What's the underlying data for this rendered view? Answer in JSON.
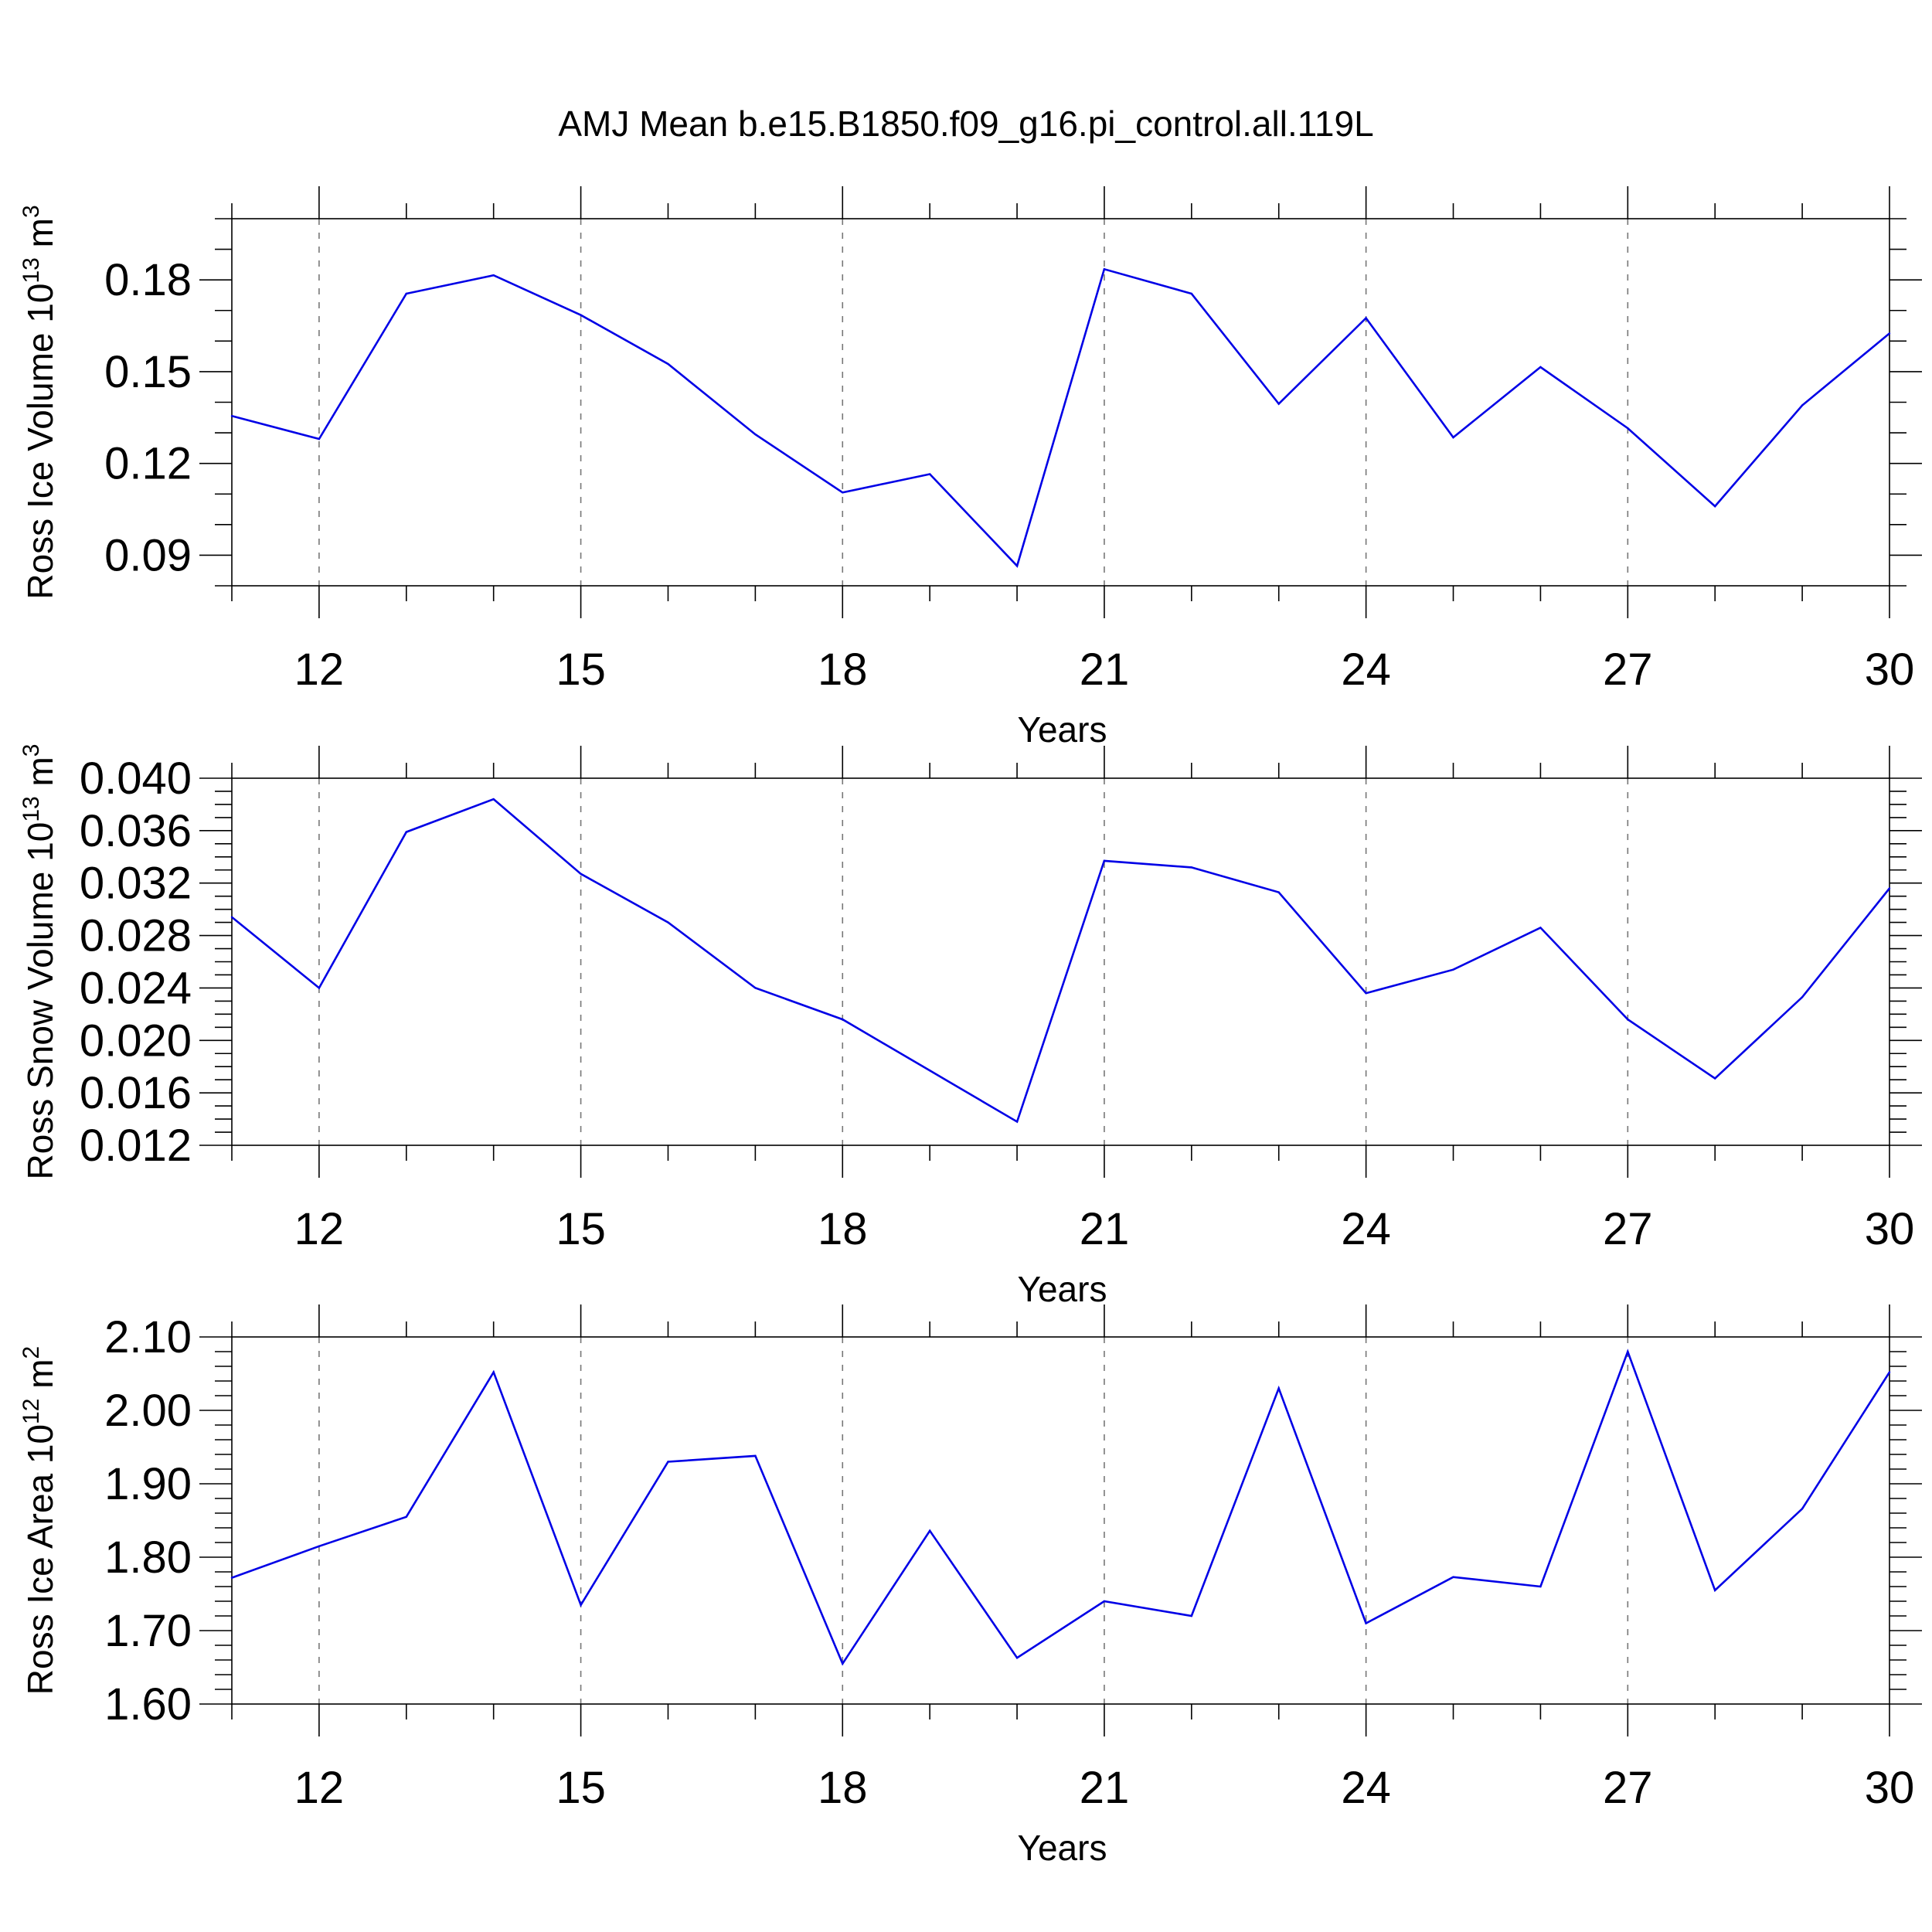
{
  "figure": {
    "title": "AMJ Mean b.e15.B1850.f09_g16.pi_control.all.119L"
  },
  "chart_data": [
    {
      "type": "line",
      "ylabel": "Ross Ice Volume",
      "yunit_base": "10",
      "yunit_exp": "13",
      "yunit_tail": " m",
      "yunit_tail_exp": "3",
      "xlabel": "Years",
      "xlim": [
        11,
        30
      ],
      "ylim": [
        0.08,
        0.2
      ],
      "xticks": [
        12,
        15,
        18,
        21,
        24,
        27,
        30
      ],
      "xtick_labels": [
        "12",
        "15",
        "18",
        "21",
        "24",
        "27",
        "30"
      ],
      "yticks": [
        0.09,
        0.12,
        0.15,
        0.18
      ],
      "ytick_labels": [
        "0.09",
        "0.12",
        "0.15",
        "0.18"
      ],
      "ytick_minor_step": 0.01,
      "grid": "vertical dashed at major x ticks",
      "color": "#0000e6",
      "x": [
        11,
        12,
        13,
        14,
        15,
        16,
        17,
        18,
        19,
        20,
        21,
        22,
        23,
        24,
        25,
        26,
        27,
        28,
        29,
        30
      ],
      "values": [
        0.1355,
        0.128,
        0.1755,
        0.1815,
        0.1685,
        0.1525,
        0.1295,
        0.1105,
        0.1165,
        0.0865,
        0.1835,
        0.1755,
        0.1395,
        0.1675,
        0.1285,
        0.1515,
        0.1315,
        0.106,
        0.139,
        0.1625
      ]
    },
    {
      "type": "line",
      "ylabel": "Ross Snow Volume",
      "yunit_base": "10",
      "yunit_exp": "13",
      "yunit_tail": " m",
      "yunit_tail_exp": "3",
      "xlabel": "Years",
      "xlim": [
        11,
        30
      ],
      "ylim": [
        0.012,
        0.04
      ],
      "xticks": [
        12,
        15,
        18,
        21,
        24,
        27,
        30
      ],
      "xtick_labels": [
        "12",
        "15",
        "18",
        "21",
        "24",
        "27",
        "30"
      ],
      "yticks": [
        0.012,
        0.016,
        0.02,
        0.024,
        0.028,
        0.032,
        0.036,
        0.04
      ],
      "ytick_labels": [
        "0.012",
        "0.016",
        "0.020",
        "0.024",
        "0.028",
        "0.032",
        "0.036",
        "0.040"
      ],
      "ytick_minor_step": 0.001,
      "grid": "vertical dashed at major x ticks",
      "color": "#0000e6",
      "x": [
        11,
        12,
        13,
        14,
        15,
        16,
        17,
        18,
        19,
        20,
        21,
        22,
        23,
        24,
        25,
        26,
        27,
        28,
        29,
        30
      ],
      "values": [
        0.0294,
        0.024,
        0.0359,
        0.0384,
        0.0327,
        0.029,
        0.024,
        0.0216,
        0.0177,
        0.0138,
        0.0337,
        0.0332,
        0.0313,
        0.0236,
        0.0254,
        0.0286,
        0.0216,
        0.0171,
        0.0233,
        0.0316
      ]
    },
    {
      "type": "line",
      "ylabel": "Ross Ice Area",
      "yunit_base": "10",
      "yunit_exp": "12",
      "yunit_tail": " m",
      "yunit_tail_exp": "2",
      "xlabel": "Years",
      "xlim": [
        11,
        30
      ],
      "ylim": [
        1.6,
        2.1
      ],
      "xticks": [
        12,
        15,
        18,
        21,
        24,
        27,
        30
      ],
      "xtick_labels": [
        "12",
        "15",
        "18",
        "21",
        "24",
        "27",
        "30"
      ],
      "yticks": [
        1.6,
        1.7,
        1.8,
        1.9,
        2.0,
        2.1
      ],
      "ytick_labels": [
        "1.60",
        "1.70",
        "1.80",
        "1.90",
        "2.00",
        "2.10"
      ],
      "ytick_minor_step": 0.02,
      "grid": "vertical dashed at major x ticks",
      "color": "#0000e6",
      "x": [
        11,
        12,
        13,
        14,
        15,
        16,
        17,
        18,
        19,
        20,
        21,
        22,
        23,
        24,
        25,
        26,
        27,
        28,
        29,
        30
      ],
      "values": [
        1.772,
        1.815,
        1.855,
        2.052,
        1.735,
        1.93,
        1.938,
        1.655,
        1.836,
        1.663,
        1.74,
        1.72,
        2.03,
        1.71,
        1.773,
        1.76,
        2.08,
        1.755,
        1.866,
        2.052
      ]
    }
  ]
}
